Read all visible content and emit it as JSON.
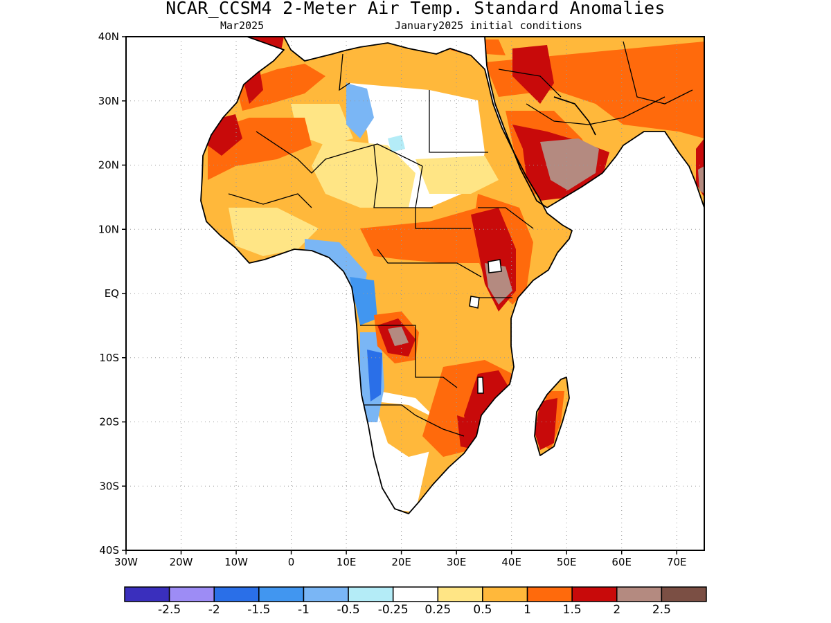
{
  "title": "NCAR_CCSM4 2-Meter Air Temp. Standard Anomalies",
  "subtitle_left": "Mar2025",
  "subtitle_right": "January2025 initial conditions",
  "map": {
    "lon_range": [
      -30,
      75
    ],
    "lat_range": [
      -40,
      40
    ],
    "gridlines": "dotted",
    "lat_ticks": [
      {
        "value": 40,
        "label": "40N"
      },
      {
        "value": 30,
        "label": "30N"
      },
      {
        "value": 20,
        "label": "20N"
      },
      {
        "value": 10,
        "label": "10N"
      },
      {
        "value": 0,
        "label": "EQ"
      },
      {
        "value": -10,
        "label": "10S"
      },
      {
        "value": -20,
        "label": "20S"
      },
      {
        "value": -30,
        "label": "30S"
      },
      {
        "value": -40,
        "label": "40S"
      }
    ],
    "lon_ticks": [
      {
        "value": -30,
        "label": "30W"
      },
      {
        "value": -20,
        "label": "20W"
      },
      {
        "value": -10,
        "label": "10W"
      },
      {
        "value": 0,
        "label": "0"
      },
      {
        "value": 10,
        "label": "10E"
      },
      {
        "value": 20,
        "label": "20E"
      },
      {
        "value": 30,
        "label": "30E"
      },
      {
        "value": 40,
        "label": "40E"
      },
      {
        "value": 50,
        "label": "50E"
      },
      {
        "value": 60,
        "label": "60E"
      },
      {
        "value": 70,
        "label": "70E"
      }
    ]
  },
  "colorbar": {
    "colors": [
      "#3a2fbd",
      "#9d8cf5",
      "#2a6fe8",
      "#4196f0",
      "#7ab6f5",
      "#b4ecf7",
      "#ffffff",
      "#ffe585",
      "#ffb83b",
      "#ff6a0c",
      "#c80a0a",
      "#b48a80",
      "#7b4f44"
    ],
    "labels": [
      "-2.5",
      "-2",
      "-1.5",
      "-1",
      "-0.5",
      "-0.25",
      "0.25",
      "0.5",
      "1",
      "1.5",
      "2",
      "2.5"
    ]
  }
}
